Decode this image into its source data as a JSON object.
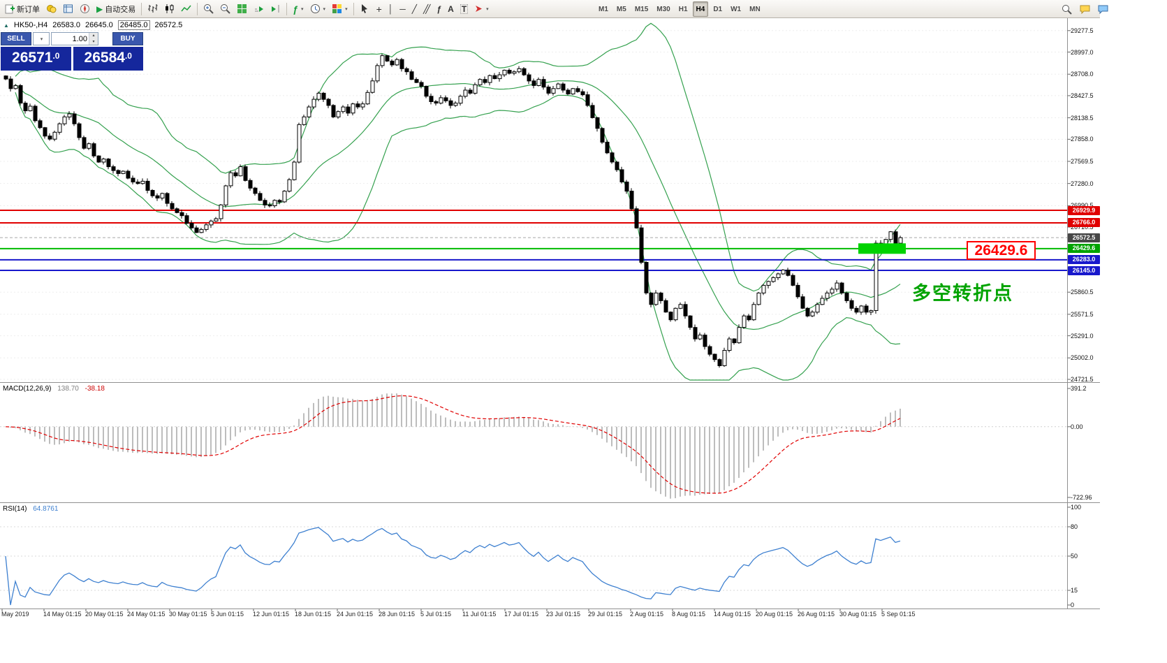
{
  "toolbar": {
    "new_order_label": "新订单",
    "autotrading_label": "自动交易",
    "timeframes": [
      "M1",
      "M5",
      "M15",
      "M30",
      "H1",
      "H4",
      "D1",
      "W1",
      "MN"
    ],
    "active_timeframe": "H4"
  },
  "icons": {
    "symbol_arrow": "▲",
    "caret_down": "▾",
    "spinner_up": "▴",
    "spinner_down": "▾",
    "autotrading_play": "▶",
    "crosshair": "+",
    "vertical_line": "│",
    "horizontal_line": "─",
    "trendline": "╱",
    "channel": "╱╱",
    "fibonacci": "ƒ",
    "text_tool": "A",
    "label_tool": "T"
  },
  "quote": {
    "symbol_period": "HK50-,H4",
    "open": "26583.0",
    "high": "26645.0",
    "low": "26485.0",
    "close": "26572.5"
  },
  "order_panel": {
    "sell_label": "SELL",
    "buy_label": "BUY",
    "volume": "1.00",
    "sell_price_main": "26571",
    "sell_price_frac": ".0",
    "buy_price_main": "26584",
    "buy_price_frac": ".0"
  },
  "price_axis": {
    "labels": [
      "29277.5",
      "28997.0",
      "28708.0",
      "28427.5",
      "28138.5",
      "27858.0",
      "27569.5",
      "27280.0",
      "26990.5",
      "26710.5",
      "25860.5",
      "25571.5",
      "25291.0",
      "25002.0",
      "24721.5"
    ],
    "badges": [
      {
        "label": "26929.9",
        "bg": "#e00000"
      },
      {
        "label": "26766.0",
        "bg": "#e00000"
      },
      {
        "label": "26572.5",
        "bg": "#474747"
      },
      {
        "label": "26429.6",
        "bg": "#00a300"
      },
      {
        "label": "26283.0",
        "bg": "#1818cc"
      },
      {
        "label": "26145.0",
        "bg": "#1818cc"
      }
    ]
  },
  "macd": {
    "label": "MACD(12,26,9)",
    "value": "138.70",
    "signal_value": "-38.18",
    "axis": [
      "391.2",
      "0.00",
      "-722.96"
    ]
  },
  "rsi": {
    "label": "RSI(14)",
    "value": "64.8761",
    "axis": [
      "100",
      "80",
      "50",
      "15",
      "0"
    ],
    "level_lines": [
      80,
      50,
      15
    ]
  },
  "time_axis": [
    "May 2019",
    "14 May 01:15",
    "20 May 01:15",
    "24 May 01:15",
    "30 May 01:15",
    "5 Jun 01:15",
    "12 Jun 01:15",
    "18 Jun 01:15",
    "24 Jun 01:15",
    "28 Jun 01:15",
    "5 Jul 01:15",
    "11 Jul 01:15",
    "17 Jul 01:15",
    "23 Jul 01:15",
    "29 Jul 01:15",
    "2 Aug 01:15",
    "8 Aug 01:15",
    "14 Aug 01:15",
    "20 Aug 01:15",
    "26 Aug 01:15",
    "30 Aug 01:15",
    "5 Sep 01:15"
  ],
  "annotations": {
    "price_box": "26429.6",
    "turning_point": "多空转折点",
    "highlight_color": "#00d300",
    "highlight_price": 26429.6
  },
  "chart_data": {
    "type": "candlestick",
    "symbol": "HK50-",
    "timeframe": "H4",
    "ohlc_header": {
      "open": 26583.0,
      "high": 26645.0,
      "low": 26485.0,
      "close": 26572.5
    },
    "y_axis_ticks": [
      29277.5,
      28997.0,
      28708.0,
      28427.5,
      28138.5,
      27858.0,
      27569.5,
      27280.0,
      26990.5,
      26710.5,
      25860.5,
      25571.5,
      25291.0,
      25002.0,
      24721.5
    ],
    "indicators": [
      {
        "name": "Bollinger Bands",
        "period": 20,
        "deviation": 2,
        "color": "#35a14f"
      },
      {
        "name": "MACD",
        "params": [
          12,
          26,
          9
        ],
        "current": 138.7,
        "signal": -38.18
      },
      {
        "name": "RSI",
        "period": 14,
        "current": 64.8761
      }
    ],
    "levels": [
      {
        "price": 26929.9,
        "color": "#e00000",
        "style": "solid"
      },
      {
        "price": 26766.0,
        "color": "#e00000",
        "style": "solid"
      },
      {
        "price": 26572.5,
        "color": "#a8a8a8",
        "style": "dashed",
        "role": "current-price"
      },
      {
        "price": 26429.6,
        "color": "#00bb00",
        "style": "solid"
      },
      {
        "price": 26283.0,
        "color": "#1818cc",
        "style": "solid"
      },
      {
        "price": 26145.0,
        "color": "#1818cc",
        "style": "solid"
      }
    ],
    "closes": [
      28645,
      28520,
      28560,
      28330,
      28230,
      28290,
      28100,
      28010,
      27900,
      27860,
      27950,
      28060,
      28150,
      28190,
      28060,
      27880,
      27740,
      27800,
      27640,
      27560,
      27600,
      27500,
      27450,
      27410,
      27440,
      27350,
      27300,
      27280,
      27310,
      27190,
      27120,
      27090,
      27150,
      27020,
      26950,
      26900,
      26860,
      26760,
      26700,
      26640,
      26680,
      26740,
      26790,
      26820,
      27000,
      27250,
      27420,
      27380,
      27500,
      27320,
      27220,
      27150,
      27060,
      27000,
      26990,
      27060,
      27040,
      27180,
      27330,
      27560,
      28050,
      28150,
      28280,
      28380,
      28460,
      28380,
      28300,
      28150,
      28220,
      28280,
      28200,
      28320,
      28280,
      28320,
      28470,
      28620,
      28820,
      28950,
      28880,
      28830,
      28900,
      28780,
      28740,
      28640,
      28600,
      28550,
      28420,
      28350,
      28330,
      28400,
      28360,
      28300,
      28330,
      28420,
      28500,
      28460,
      28570,
      28640,
      28600,
      28690,
      28650,
      28700,
      28760,
      28720,
      28740,
      28780,
      28700,
      28620,
      28560,
      28640,
      28540,
      28460,
      28520,
      28580,
      28500,
      28450,
      28520,
      28480,
      28440,
      28300,
      28140,
      28000,
      27820,
      27680,
      27560,
      27460,
      27300,
      27180,
      26950,
      26700,
      26250,
      25850,
      25700,
      25850,
      25750,
      25600,
      25500,
      25650,
      25700,
      25550,
      25400,
      25250,
      25300,
      25150,
      25050,
      24980,
      24900,
      25100,
      25250,
      25200,
      25400,
      25550,
      25500,
      25700,
      25850,
      25950,
      26000,
      26050,
      26100,
      26150,
      26080,
      25950,
      25800,
      25650,
      25550,
      25600,
      25700,
      25780,
      25850,
      25900,
      25980,
      25850,
      25750,
      25650,
      25600,
      25680,
      25600,
      25620,
      26500,
      26450,
      26550,
      26650,
      26500,
      26572.5
    ]
  }
}
